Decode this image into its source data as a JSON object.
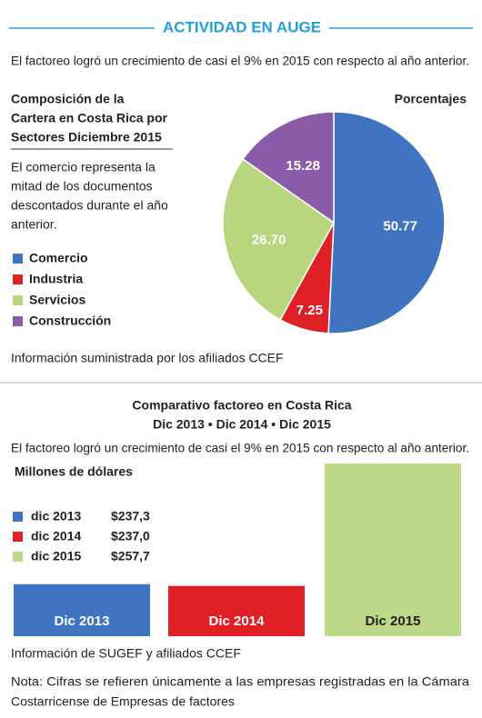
{
  "header": {
    "title": "ACTIVIDAD EN AUGE",
    "intro": "El factoreo logró un crecimiento de casi el 9% en 2015 con respecto al año anterior."
  },
  "chart_data": [
    {
      "type": "pie",
      "title": [
        "Composición de la",
        "Cartera en Costa Rica por",
        "Sectores Diciembre 2015"
      ],
      "unit_label": "Porcentajes",
      "description": [
        "El comercio representa la",
        "mitad de los documentos",
        "descontados durante el año",
        "anterior."
      ],
      "categories": [
        "Comercio",
        "Industria",
        "Servicios",
        "Construcción"
      ],
      "values": [
        50.77,
        7.25,
        26.7,
        15.28
      ],
      "value_labels": [
        "50.77",
        "7.25",
        "26.70",
        "15.28"
      ],
      "colors": [
        "#3f74c0",
        "#e02027",
        "#b7d67e",
        "#8a5ba6"
      ],
      "source": "Información suministrada por los afiliados CCEF"
    },
    {
      "type": "bar",
      "title": [
        "Comparativo factoreo en Costa Rica",
        "Dic 2013 • Dic 2014 • Dic 2015"
      ],
      "subtitle": "El factoreo logró un crecimiento de casi el 9% en 2015 con respecto al año anterior.",
      "y_label": "Millones de dólares",
      "categories": [
        "Dic 2013",
        "Dic 2014",
        "Dic 2015"
      ],
      "legend": [
        "dic 2013",
        "dic 2014",
        "dic 2015"
      ],
      "values": [
        237.3,
        237.0,
        257.7
      ],
      "value_labels": [
        "$237,3",
        "$237,0",
        "$257,7"
      ],
      "colors": [
        "#3f74c0",
        "#e02027",
        "#bcd98a"
      ],
      "ylim": [
        228.5,
        260
      ],
      "source": "Información de SUGEF y afiliados CCEF"
    }
  ],
  "note": [
    "Nota: Cifras se refieren únicamente a las empresas registradas en la Cámara",
    "Costarricense de Empresas de factores"
  ]
}
